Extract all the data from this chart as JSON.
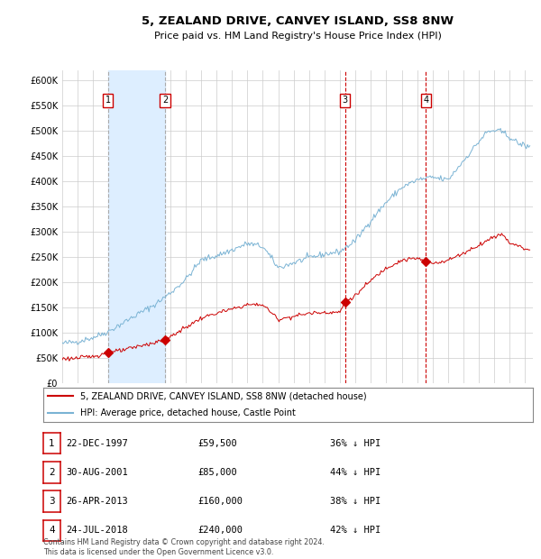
{
  "title": "5, ZEALAND DRIVE, CANVEY ISLAND, SS8 8NW",
  "subtitle": "Price paid vs. HM Land Registry's House Price Index (HPI)",
  "legend_line1": "5, ZEALAND DRIVE, CANVEY ISLAND, SS8 8NW (detached house)",
  "legend_line2": "HPI: Average price, detached house, Castle Point",
  "footer_line1": "Contains HM Land Registry data © Crown copyright and database right 2024.",
  "footer_line2": "This data is licensed under the Open Government Licence v3.0.",
  "table_rows": [
    {
      "num": 1,
      "date": "22-DEC-1997",
      "price": "£59,500",
      "pct": "36% ↓ HPI"
    },
    {
      "num": 2,
      "date": "30-AUG-2001",
      "price": "£85,000",
      "pct": "44% ↓ HPI"
    },
    {
      "num": 3,
      "date": "26-APR-2013",
      "price": "£160,000",
      "pct": "38% ↓ HPI"
    },
    {
      "num": 4,
      "date": "24-JUL-2018",
      "price": "£240,000",
      "pct": "42% ↓ HPI"
    }
  ],
  "sale_dates_decimal": [
    1997.97,
    2001.66,
    2013.32,
    2018.56
  ],
  "sale_prices": [
    59500,
    85000,
    160000,
    240000
  ],
  "sale_nums": [
    1,
    2,
    3,
    4
  ],
  "vline_gray": [
    1997.97,
    2001.66
  ],
  "vline_red": [
    2013.32,
    2018.56
  ],
  "shaded_regions": [
    [
      1997.97,
      2001.66
    ]
  ],
  "hpi_color": "#7ab3d4",
  "red_color": "#cc0000",
  "shade_color": "#ddeeff",
  "grid_color": "#cccccc",
  "ylim": [
    0,
    620000
  ],
  "xlim_start": 1995.0,
  "xlim_end": 2025.5,
  "background_color": "#ffffff",
  "hpi_key_x": [
    1995,
    1996,
    1997,
    1998,
    1999,
    2000,
    2001,
    2002,
    2003,
    2004,
    2005,
    2006,
    2007,
    2008,
    2009,
    2010,
    2011,
    2012,
    2013,
    2014,
    2015,
    2016,
    2017,
    2018,
    2019,
    2020,
    2021,
    2022,
    2022.5,
    2023,
    2023.5,
    2024,
    2024.5,
    2025,
    2025.3
  ],
  "hpi_key_y": [
    78000,
    82000,
    90000,
    102000,
    120000,
    138000,
    155000,
    178000,
    205000,
    243000,
    252000,
    263000,
    276000,
    270000,
    228000,
    238000,
    248000,
    255000,
    260000,
    282000,
    322000,
    358000,
    387000,
    402000,
    407000,
    402000,
    440000,
    478000,
    496000,
    500000,
    497000,
    487000,
    475000,
    470000,
    466000
  ],
  "red_key_x": [
    1995,
    1996,
    1997,
    1997.97,
    1999,
    2000,
    2001,
    2001.66,
    2003,
    2004,
    2005,
    2006,
    2007,
    2008,
    2009,
    2010,
    2011,
    2012,
    2013,
    2013.32,
    2014,
    2015,
    2016,
    2017,
    2018,
    2018.56,
    2019,
    2020,
    2021,
    2022,
    2023,
    2023.5,
    2024,
    2025,
    2025.3
  ],
  "red_key_y": [
    48000,
    49000,
    53000,
    59500,
    65000,
    73000,
    80000,
    85000,
    110000,
    128000,
    138000,
    146000,
    155000,
    155000,
    126000,
    132000,
    138000,
    140000,
    140000,
    160000,
    173000,
    203000,
    228000,
    243000,
    247000,
    240000,
    237000,
    243000,
    257000,
    273000,
    290000,
    295000,
    278000,
    266000,
    263000
  ],
  "noise_seed_hpi": 42,
  "noise_seed_red": 123,
  "noise_hpi": 3000,
  "noise_red": 2000
}
